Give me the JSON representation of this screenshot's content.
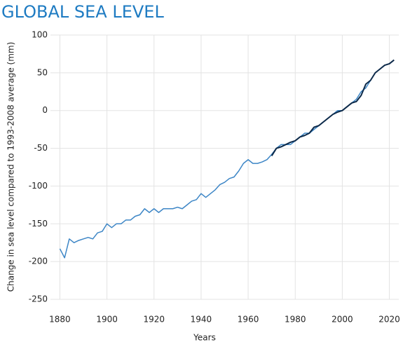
{
  "chart_data": {
    "type": "line",
    "title": "GLOBAL SEA LEVEL",
    "x_label": "Years",
    "y_label": "Change in sea level compared to 1993-2008 average (mm)",
    "series": [
      {
        "color": "#3d86c6",
        "x": [
          1880,
          1882,
          1884,
          1886,
          1888,
          1890,
          1892,
          1894,
          1896,
          1898,
          1900,
          1902,
          1904,
          1906,
          1908,
          1910,
          1912,
          1914,
          1916,
          1918,
          1920,
          1922,
          1924,
          1926,
          1928,
          1930,
          1932,
          1934,
          1936,
          1938,
          1940,
          1942,
          1944,
          1946,
          1948,
          1950,
          1952,
          1954,
          1956,
          1958,
          1960,
          1962,
          1964,
          1966,
          1968,
          1970,
          1972,
          1974,
          1976,
          1978,
          1980,
          1982,
          1984,
          1986,
          1988,
          1990,
          1992,
          1994,
          1996,
          1998,
          2000,
          2002,
          2004,
          2006,
          2008,
          2010,
          2012
        ],
        "values": [
          -183,
          -195,
          -170,
          -175,
          -172,
          -170,
          -168,
          -170,
          -162,
          -160,
          -150,
          -155,
          -150,
          -150,
          -145,
          -145,
          -140,
          -138,
          -130,
          -135,
          -130,
          -135,
          -130,
          -130,
          -130,
          -128,
          -130,
          -125,
          -120,
          -118,
          -110,
          -115,
          -110,
          -105,
          -98,
          -95,
          -90,
          -88,
          -80,
          -70,
          -65,
          -70,
          -70,
          -68,
          -65,
          -58,
          -50,
          -45,
          -45,
          -45,
          -40,
          -35,
          -30,
          -30,
          -25,
          -20,
          -15,
          -10,
          -5,
          0,
          0,
          5,
          10,
          15,
          25,
          30,
          40
        ]
      },
      {
        "color": "#0d2a4a",
        "x": [
          1970,
          1972,
          1974,
          1976,
          1978,
          1980,
          1982,
          1984,
          1986,
          1988,
          1990,
          1992,
          1994,
          1996,
          1998,
          2000,
          2002,
          2004,
          2006,
          2008,
          2010,
          2012,
          2014,
          2016,
          2018,
          2020,
          2022
        ],
        "values": [
          -60,
          -50,
          -48,
          -45,
          -42,
          -40,
          -35,
          -33,
          -30,
          -22,
          -20,
          -15,
          -10,
          -5,
          -2,
          0,
          5,
          10,
          12,
          20,
          35,
          40,
          50,
          55,
          60,
          62,
          67
        ]
      }
    ],
    "xlim": [
      1876,
      2024
    ],
    "xticks": [
      1880,
      1900,
      1920,
      1940,
      1960,
      1980,
      2000,
      2020
    ],
    "ylim": [
      -250,
      100
    ],
    "yticks": [
      -250,
      -200,
      -150,
      -100,
      -50,
      0,
      50,
      100
    ],
    "grid": true
  }
}
